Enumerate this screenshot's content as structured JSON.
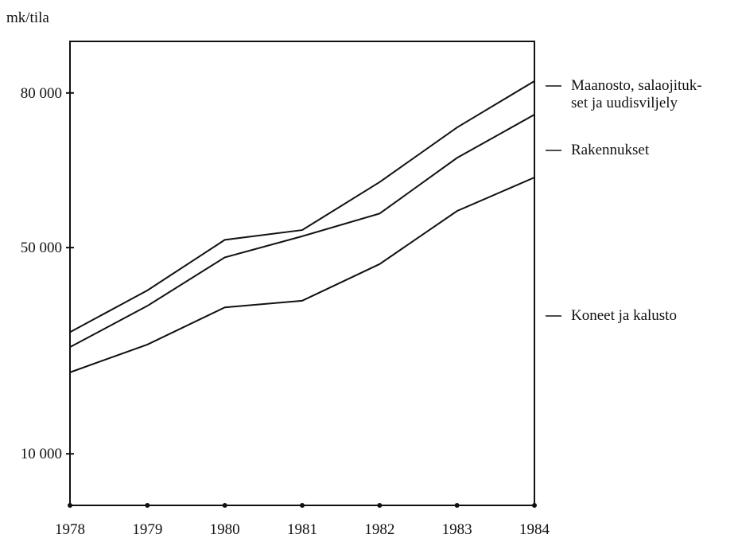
{
  "chart_data": {
    "type": "line",
    "ylabel": "mk/tila",
    "x": [
      1978,
      1979,
      1980,
      1981,
      1982,
      1983,
      1984
    ],
    "xlim": [
      1978,
      1984
    ],
    "xticks": [
      1978,
      1979,
      1980,
      1981,
      1982,
      1983,
      1984
    ],
    "ylim": [
      0,
      90000
    ],
    "yticks": [
      {
        "value": 10000,
        "label": "10 000"
      },
      {
        "value": 50000,
        "label": "50 000"
      },
      {
        "value": 80000,
        "label": "80 000"
      }
    ],
    "series": [
      {
        "name": "Maanosto, salaojituk-\nset ja uudisviljely",
        "color": "#111111",
        "values": [
          33600,
          41700,
          51500,
          53400,
          62700,
          73300,
          82300
        ]
      },
      {
        "name": "Rakennukset",
        "color": "#111111",
        "values": [
          30700,
          38700,
          48100,
          52200,
          56600,
          67400,
          75800
        ]
      },
      {
        "name": "Koneet ja kalusto",
        "color": "#111111",
        "values": [
          25800,
          31200,
          38400,
          39700,
          46800,
          57100,
          63600
        ]
      }
    ]
  }
}
